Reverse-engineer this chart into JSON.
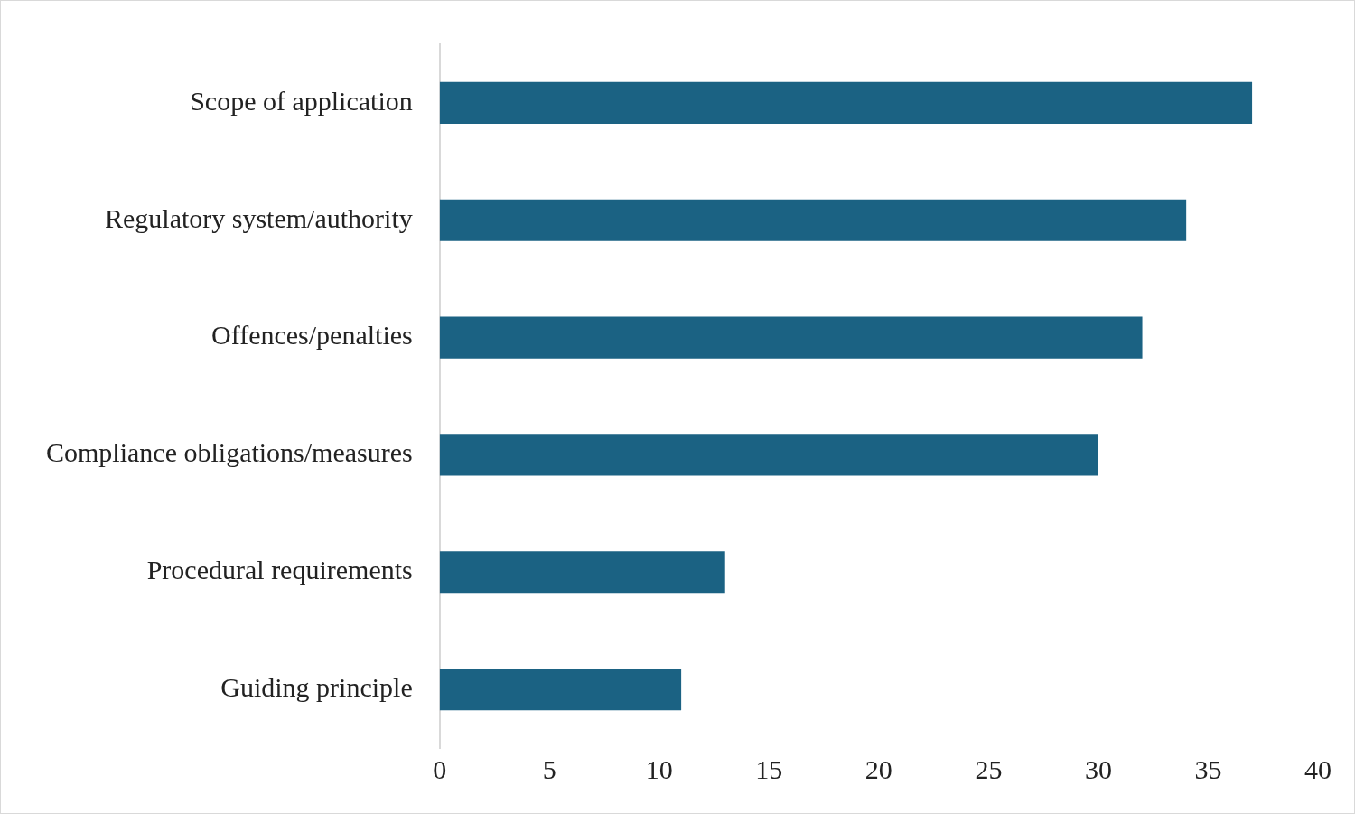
{
  "chart_data": {
    "type": "bar",
    "orientation": "horizontal",
    "categories": [
      "Scope of application",
      "Regulatory system/authority",
      "Offences/penalties",
      "Compliance obligations/measures",
      "Procedural requirements",
      "Guiding principle"
    ],
    "values": [
      37,
      34,
      32,
      30,
      13,
      11
    ],
    "color": "#1b6283",
    "xlim": [
      0,
      40
    ],
    "xticks": [
      0,
      5,
      10,
      15,
      20,
      25,
      30,
      35,
      40
    ],
    "grid": false,
    "legend": false
  }
}
